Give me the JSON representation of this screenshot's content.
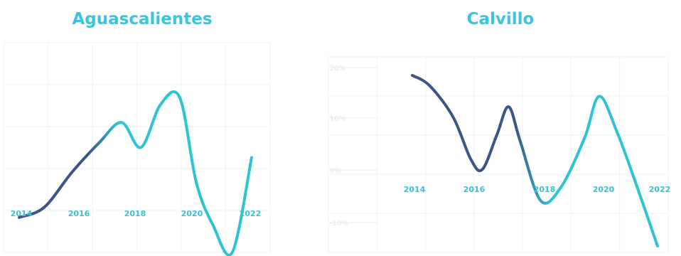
{
  "colors": {
    "title": "#37c6dc",
    "line_start": "#3b5587",
    "line_end": "#2ec3d2",
    "tick_label": "#3ac0d6",
    "grid": "#eef3f5",
    "ytick_label": "#dde6ea"
  },
  "chart_data": [
    {
      "type": "line",
      "title": "Aguascalientes",
      "x": [
        2013.6,
        2014.5,
        2015.5,
        2016.5,
        2017.3,
        2018.0,
        2018.7,
        2019.4,
        2020.0,
        2020.6,
        2021.3,
        2022.0
      ],
      "y": [
        -1.2,
        -0.8,
        0.6,
        1.8,
        2.6,
        1.6,
        3.3,
        3.6,
        0.2,
        -1.5,
        -2.6,
        1.2
      ],
      "x_ticks": [
        "2014",
        "2016",
        "2018",
        "2020",
        "2022"
      ],
      "y_ticks": [],
      "xlabel": "",
      "ylabel": "",
      "grid": true
    },
    {
      "type": "line",
      "title": "Calvillo",
      "x": [
        2013.6,
        2014.2,
        2015.0,
        2015.6,
        2016.0,
        2016.5,
        2016.9,
        2017.3,
        2018.0,
        2018.7,
        2019.5,
        2020.0,
        2020.6,
        2021.3,
        2022.0
      ],
      "y": [
        2.6,
        2.3,
        1.4,
        0.2,
        -0.1,
        0.9,
        1.7,
        0.7,
        -1.0,
        -0.6,
        0.8,
        2.0,
        1.0,
        -0.6,
        -2.3
      ],
      "x_ticks": [
        "2014",
        "2016",
        "2018",
        "2020",
        "2022"
      ],
      "y_ticks": [
        "20%",
        "10%",
        "0%",
        "-10%"
      ],
      "xlabel": "",
      "ylabel": "",
      "grid": true
    }
  ]
}
